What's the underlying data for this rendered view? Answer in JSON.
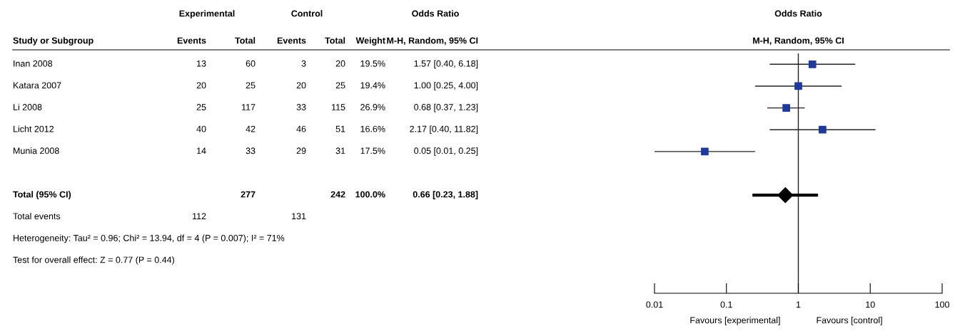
{
  "chart_data": [
    {
      "type": "other",
      "categories": [
        "Study or Subgroup",
        "Events",
        "Total",
        "Events",
        "Total",
        "Weight",
        "M-H, Random, 95% CI"
      ],
      "cell_labels": [
        [
          "Inan 2008",
          "13",
          "60",
          "3",
          "20",
          "19.5%",
          "1.57 [0.40, 6.18]"
        ],
        [
          "Katara 2007",
          "20",
          "25",
          "20",
          "25",
          "19.4%",
          "1.00 [0.25, 4.00]"
        ],
        [
          "Li 2008",
          "25",
          "117",
          "33",
          "115",
          "26.9%",
          "0.68 [0.37, 1.23]"
        ],
        [
          "Licht 2012",
          "40",
          "42",
          "46",
          "51",
          "16.6%",
          "2.17 [0.40, 11.82]"
        ],
        [
          "Munia 2008",
          "14",
          "33",
          "29",
          "31",
          "17.5%",
          "0.05 [0.01, 0.25]"
        ],
        [
          null,
          null,
          null,
          null,
          null,
          null,
          null
        ],
        [
          "Total (95% CI)",
          null,
          "277",
          null,
          "242",
          "100.0%",
          "0.66 [0.23, 1.88]"
        ],
        [
          "Total events",
          "112",
          null,
          "131",
          null,
          null,
          null
        ]
      ],
      "annotations": [
        "Experimental",
        "Control",
        "Odds Ratio",
        "Heterogeneity: Tau² = 0.96; Chi² = 13.94, df = 4 (P = 0.007); I² = 71%",
        "Test for overall effect: Z = 0.77 (P = 0.44)"
      ]
    },
    {
      "type": "scatter",
      "title": "Odds Ratio",
      "subtitle": "M-H, Random, 95% CI",
      "orientation": "horizontal",
      "log": "x",
      "categories": [
        null,
        null,
        null,
        null,
        null,
        null,
        null,
        null,
        null,
        null,
        null
      ],
      "series": [
        {
          "marker": "square",
          "color": "#1f3a9e",
          "values": [
            1.57,
            1.0,
            0.68,
            2.17,
            0.05,
            null,
            null,
            null,
            null,
            null,
            null
          ],
          "errors": [
            [
              0.4,
              6.18
            ],
            [
              0.25,
              4.0
            ],
            [
              0.37,
              1.23
            ],
            [
              0.4,
              11.82
            ],
            [
              0.01,
              0.25
            ],
            null,
            null,
            null,
            null,
            null,
            null
          ]
        },
        {
          "marker": "diamond",
          "color": "#000000",
          "values": [
            null,
            null,
            null,
            null,
            null,
            null,
            0.66,
            null,
            null,
            null,
            null
          ],
          "errors": [
            null,
            null,
            null,
            null,
            null,
            null,
            [
              0.23,
              1.88
            ],
            null,
            null,
            null,
            null
          ]
        }
      ],
      "xlim": [
        0.01,
        100
      ],
      "xticks": [
        0.01,
        0.1,
        1,
        10,
        100
      ],
      "ref_lines": [
        {
          "axis": "x",
          "value": 1,
          "color": "#222222"
        }
      ],
      "grid": false,
      "legend": false,
      "annotations": [
        "Favours [experimental]",
        "Favours [control]"
      ]
    }
  ]
}
